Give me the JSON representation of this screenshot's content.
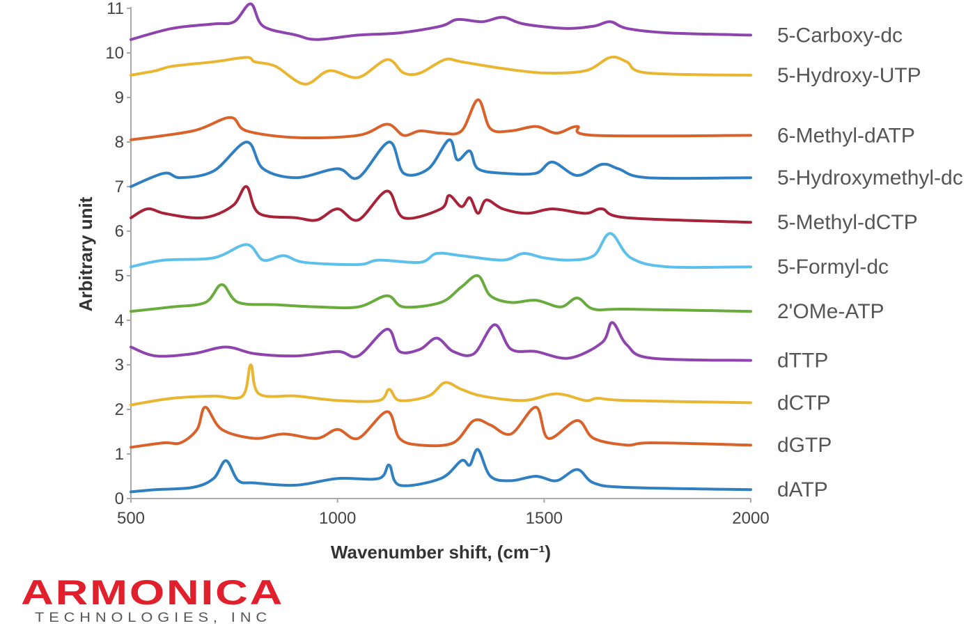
{
  "chart_data": {
    "type": "line",
    "xlabel": "Wavenumber shift, (cm⁻¹)",
    "ylabel": "Arbitrary unit",
    "xlim": [
      500,
      2000
    ],
    "ylim": [
      0,
      11
    ],
    "xticks": [
      500,
      1000,
      1500,
      2000
    ],
    "yticks": [
      0,
      1,
      2,
      3,
      4,
      5,
      6,
      7,
      8,
      9,
      10,
      11
    ],
    "grid": false,
    "legend": "right (labels next to each trace)",
    "series": [
      {
        "name": "dATP",
        "color": "#2f7fc1",
        "offset": 0.15,
        "points": [
          [
            500,
            0
          ],
          [
            560,
            0.05
          ],
          [
            650,
            0.1
          ],
          [
            700,
            0.3
          ],
          [
            730,
            0.7
          ],
          [
            760,
            0.25
          ],
          [
            800,
            0.2
          ],
          [
            900,
            0.15
          ],
          [
            1000,
            0.3
          ],
          [
            1100,
            0.3
          ],
          [
            1125,
            0.6
          ],
          [
            1150,
            0.15
          ],
          [
            1250,
            0.3
          ],
          [
            1300,
            0.7
          ],
          [
            1320,
            0.6
          ],
          [
            1340,
            0.95
          ],
          [
            1370,
            0.35
          ],
          [
            1420,
            0.25
          ],
          [
            1480,
            0.35
          ],
          [
            1530,
            0.25
          ],
          [
            1580,
            0.5
          ],
          [
            1620,
            0.2
          ],
          [
            1700,
            0.1
          ],
          [
            2000,
            0.05
          ]
        ]
      },
      {
        "name": "dGTP",
        "color": "#d9622b",
        "offset": 1.15,
        "points": [
          [
            500,
            0
          ],
          [
            580,
            0.1
          ],
          [
            620,
            0.1
          ],
          [
            660,
            0.4
          ],
          [
            680,
            0.9
          ],
          [
            720,
            0.4
          ],
          [
            800,
            0.2
          ],
          [
            870,
            0.3
          ],
          [
            950,
            0.2
          ],
          [
            1000,
            0.4
          ],
          [
            1050,
            0.2
          ],
          [
            1120,
            0.8
          ],
          [
            1150,
            0.2
          ],
          [
            1200,
            0.05
          ],
          [
            1280,
            0.1
          ],
          [
            1330,
            0.6
          ],
          [
            1370,
            0.5
          ],
          [
            1420,
            0.3
          ],
          [
            1480,
            0.9
          ],
          [
            1510,
            0.2
          ],
          [
            1580,
            0.6
          ],
          [
            1620,
            0.2
          ],
          [
            1700,
            0.05
          ],
          [
            1760,
            0.1
          ],
          [
            2000,
            0.05
          ]
        ]
      },
      {
        "name": "dCTP",
        "color": "#e9b632",
        "offset": 2.1,
        "points": [
          [
            500,
            0
          ],
          [
            600,
            0.15
          ],
          [
            700,
            0.2
          ],
          [
            770,
            0.2
          ],
          [
            790,
            0.9
          ],
          [
            810,
            0.25
          ],
          [
            900,
            0.2
          ],
          [
            1000,
            0.1
          ],
          [
            1100,
            0.1
          ],
          [
            1125,
            0.35
          ],
          [
            1150,
            0.1
          ],
          [
            1220,
            0.2
          ],
          [
            1260,
            0.5
          ],
          [
            1300,
            0.35
          ],
          [
            1350,
            0.2
          ],
          [
            1450,
            0.1
          ],
          [
            1530,
            0.25
          ],
          [
            1600,
            0.1
          ],
          [
            1630,
            0.15
          ],
          [
            1700,
            0.1
          ],
          [
            2000,
            0.05
          ]
        ]
      },
      {
        "name": "dTTP",
        "color": "#8e44ad",
        "offset": 3.1,
        "points": [
          [
            500,
            0.3
          ],
          [
            560,
            0.1
          ],
          [
            650,
            0.15
          ],
          [
            730,
            0.3
          ],
          [
            800,
            0.15
          ],
          [
            900,
            0.1
          ],
          [
            1000,
            0.2
          ],
          [
            1050,
            0.1
          ],
          [
            1120,
            0.7
          ],
          [
            1150,
            0.2
          ],
          [
            1200,
            0.25
          ],
          [
            1240,
            0.5
          ],
          [
            1280,
            0.2
          ],
          [
            1330,
            0.15
          ],
          [
            1380,
            0.8
          ],
          [
            1420,
            0.25
          ],
          [
            1480,
            0.2
          ],
          [
            1560,
            0.05
          ],
          [
            1640,
            0.4
          ],
          [
            1665,
            0.85
          ],
          [
            1700,
            0.35
          ],
          [
            1760,
            0.05
          ],
          [
            2000,
            0
          ]
        ]
      },
      {
        "name": "2'OMe-ATP",
        "color": "#6aab3d",
        "offset": 4.2,
        "points": [
          [
            500,
            0
          ],
          [
            600,
            0.1
          ],
          [
            680,
            0.2
          ],
          [
            720,
            0.6
          ],
          [
            760,
            0.2
          ],
          [
            850,
            0.15
          ],
          [
            950,
            0.1
          ],
          [
            1050,
            0.1
          ],
          [
            1120,
            0.35
          ],
          [
            1160,
            0.1
          ],
          [
            1250,
            0.2
          ],
          [
            1300,
            0.55
          ],
          [
            1340,
            0.8
          ],
          [
            1370,
            0.35
          ],
          [
            1420,
            0.2
          ],
          [
            1480,
            0.25
          ],
          [
            1540,
            0.1
          ],
          [
            1580,
            0.3
          ],
          [
            1620,
            0.05
          ],
          [
            1700,
            0.05
          ],
          [
            2000,
            0
          ]
        ]
      },
      {
        "name": "5-Formyl-dc",
        "color": "#5cc0ea",
        "offset": 5.2,
        "points": [
          [
            500,
            0
          ],
          [
            580,
            0.15
          ],
          [
            700,
            0.2
          ],
          [
            780,
            0.5
          ],
          [
            820,
            0.15
          ],
          [
            870,
            0.25
          ],
          [
            920,
            0.1
          ],
          [
            1050,
            0.05
          ],
          [
            1100,
            0.15
          ],
          [
            1200,
            0.1
          ],
          [
            1240,
            0.3
          ],
          [
            1300,
            0.25
          ],
          [
            1400,
            0.15
          ],
          [
            1450,
            0.3
          ],
          [
            1500,
            0.2
          ],
          [
            1560,
            0.15
          ],
          [
            1620,
            0.25
          ],
          [
            1660,
            0.75
          ],
          [
            1710,
            0.2
          ],
          [
            1800,
            0
          ],
          [
            2000,
            0
          ]
        ]
      },
      {
        "name": "5-Methyl-dCTP",
        "color": "#a8233a",
        "offset": 6.2,
        "points": [
          [
            500,
            0.1
          ],
          [
            540,
            0.3
          ],
          [
            580,
            0.2
          ],
          [
            650,
            0.1
          ],
          [
            700,
            0.15
          ],
          [
            750,
            0.4
          ],
          [
            780,
            0.8
          ],
          [
            810,
            0.2
          ],
          [
            900,
            0.1
          ],
          [
            950,
            0.05
          ],
          [
            1000,
            0.3
          ],
          [
            1050,
            0.05
          ],
          [
            1120,
            0.7
          ],
          [
            1160,
            0.1
          ],
          [
            1250,
            0.3
          ],
          [
            1270,
            0.6
          ],
          [
            1300,
            0.35
          ],
          [
            1320,
            0.55
          ],
          [
            1340,
            0.2
          ],
          [
            1360,
            0.5
          ],
          [
            1400,
            0.3
          ],
          [
            1460,
            0.2
          ],
          [
            1520,
            0.3
          ],
          [
            1600,
            0.2
          ],
          [
            1640,
            0.3
          ],
          [
            1700,
            0.1
          ],
          [
            2000,
            0
          ]
        ]
      },
      {
        "name": "5-Hydroxymethyl-dc",
        "color": "#2f7fc1",
        "offset": 7.2,
        "points": [
          [
            500,
            -0.2
          ],
          [
            580,
            0.1
          ],
          [
            620,
            0
          ],
          [
            700,
            0.15
          ],
          [
            780,
            0.8
          ],
          [
            820,
            0.2
          ],
          [
            900,
            0
          ],
          [
            1000,
            0.2
          ],
          [
            1050,
            0
          ],
          [
            1125,
            0.8
          ],
          [
            1160,
            0.1
          ],
          [
            1220,
            0.2
          ],
          [
            1270,
            0.85
          ],
          [
            1290,
            0.4
          ],
          [
            1320,
            0.6
          ],
          [
            1340,
            0.2
          ],
          [
            1400,
            0.1
          ],
          [
            1480,
            0.1
          ],
          [
            1520,
            0.35
          ],
          [
            1580,
            0.05
          ],
          [
            1640,
            0.3
          ],
          [
            1680,
            0.2
          ],
          [
            1750,
            0
          ],
          [
            2000,
            0
          ]
        ]
      },
      {
        "name": "6-Methyl-dATP",
        "color": "#d9622b",
        "offset": 8.15,
        "points": [
          [
            500,
            -0.1
          ],
          [
            650,
            0.1
          ],
          [
            740,
            0.4
          ],
          [
            780,
            0.1
          ],
          [
            900,
            -0.05
          ],
          [
            1050,
            0
          ],
          [
            1120,
            0.25
          ],
          [
            1160,
            0
          ],
          [
            1200,
            0.1
          ],
          [
            1250,
            0.05
          ],
          [
            1300,
            0.1
          ],
          [
            1340,
            0.8
          ],
          [
            1370,
            0.15
          ],
          [
            1420,
            0.1
          ],
          [
            1480,
            0.2
          ],
          [
            1530,
            0.05
          ],
          [
            1580,
            0.2
          ],
          [
            1620,
            0
          ],
          [
            2000,
            0
          ]
        ]
      },
      {
        "name": "5-Hydroxy-UTP",
        "color": "#e9b632",
        "offset": 9.5,
        "points": [
          [
            500,
            0
          ],
          [
            560,
            0.1
          ],
          [
            600,
            0.2
          ],
          [
            700,
            0.3
          ],
          [
            780,
            0.4
          ],
          [
            800,
            0.3
          ],
          [
            850,
            0.2
          ],
          [
            920,
            -0.2
          ],
          [
            980,
            0.1
          ],
          [
            1050,
            -0.05
          ],
          [
            1120,
            0.35
          ],
          [
            1160,
            0.05
          ],
          [
            1200,
            0.05
          ],
          [
            1260,
            0.35
          ],
          [
            1300,
            0.3
          ],
          [
            1400,
            0.15
          ],
          [
            1500,
            0.05
          ],
          [
            1600,
            0.1
          ],
          [
            1660,
            0.4
          ],
          [
            1700,
            0.3
          ],
          [
            1750,
            0.05
          ],
          [
            2000,
            0
          ]
        ]
      },
      {
        "name": "5-Carboxy-dc",
        "color": "#8e44ad",
        "offset": 10.4,
        "points": [
          [
            500,
            -0.1
          ],
          [
            600,
            0.15
          ],
          [
            700,
            0.25
          ],
          [
            750,
            0.3
          ],
          [
            790,
            0.7
          ],
          [
            820,
            0.2
          ],
          [
            900,
            0
          ],
          [
            950,
            -0.1
          ],
          [
            1050,
            0
          ],
          [
            1150,
            0.05
          ],
          [
            1250,
            0.2
          ],
          [
            1290,
            0.35
          ],
          [
            1350,
            0.3
          ],
          [
            1400,
            0.4
          ],
          [
            1450,
            0.25
          ],
          [
            1550,
            0.15
          ],
          [
            1620,
            0.2
          ],
          [
            1660,
            0.3
          ],
          [
            1700,
            0.15
          ],
          [
            1800,
            0.05
          ],
          [
            2000,
            0
          ]
        ]
      }
    ]
  },
  "logo": {
    "name": "ARMONICA",
    "sub": "TECHNOLOGIES, INC"
  }
}
